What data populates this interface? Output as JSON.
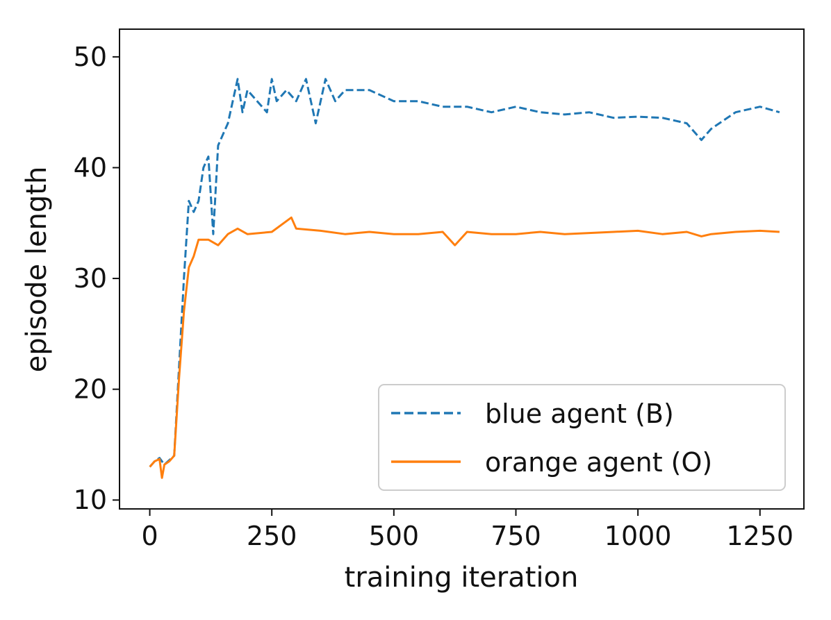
{
  "chart_data": {
    "type": "line",
    "title": "",
    "xlabel": "training iteration",
    "ylabel": "episode length",
    "xlim": [
      -62,
      1340
    ],
    "ylim": [
      9.2,
      52.5
    ],
    "xticks": [
      0,
      250,
      500,
      750,
      1000,
      1250
    ],
    "yticks": [
      10,
      20,
      30,
      40,
      50
    ],
    "grid": false,
    "legend_position": "lower-right",
    "series": [
      {
        "name": "blue agent (B)",
        "color": "#1f77b4",
        "line_style": "dashed",
        "x": [
          0,
          10,
          20,
          30,
          40,
          50,
          60,
          70,
          80,
          90,
          100,
          110,
          120,
          130,
          140,
          150,
          160,
          170,
          180,
          190,
          200,
          220,
          240,
          250,
          260,
          280,
          300,
          320,
          340,
          360,
          380,
          400,
          450,
          500,
          550,
          600,
          650,
          700,
          750,
          800,
          850,
          900,
          950,
          1000,
          1050,
          1100,
          1130,
          1150,
          1200,
          1250,
          1290
        ],
        "y": [
          13,
          13.5,
          13.8,
          13.2,
          13.6,
          14,
          22,
          30,
          37,
          36,
          37,
          40,
          41,
          34,
          42,
          43,
          44,
          46,
          48,
          45,
          47,
          46,
          45,
          48,
          46,
          47,
          46,
          48,
          44,
          48,
          46,
          47,
          47,
          46,
          46,
          45.5,
          45.5,
          45,
          45.5,
          45,
          44.8,
          45,
          44.5,
          44.6,
          44.5,
          44,
          42.5,
          43.5,
          45,
          45.5,
          45
        ]
      },
      {
        "name": "orange agent (O)",
        "color": "#ff7f0e",
        "line_style": "solid",
        "x": [
          0,
          10,
          20,
          25,
          30,
          40,
          50,
          60,
          70,
          80,
          90,
          100,
          120,
          140,
          160,
          180,
          200,
          250,
          290,
          300,
          350,
          400,
          450,
          500,
          550,
          600,
          625,
          650,
          700,
          750,
          800,
          850,
          900,
          950,
          1000,
          1050,
          1100,
          1130,
          1150,
          1200,
          1250,
          1290
        ],
        "y": [
          13,
          13.5,
          13.7,
          12,
          13.2,
          13.5,
          14,
          21,
          27,
          31,
          32,
          33.5,
          33.5,
          33,
          34,
          34.5,
          34,
          34.2,
          35.5,
          34.5,
          34.3,
          34,
          34.2,
          34,
          34,
          34.2,
          33,
          34.2,
          34,
          34,
          34.2,
          34,
          34.1,
          34.2,
          34.3,
          34,
          34.2,
          33.8,
          34,
          34.2,
          34.3,
          34.2
        ]
      }
    ]
  }
}
